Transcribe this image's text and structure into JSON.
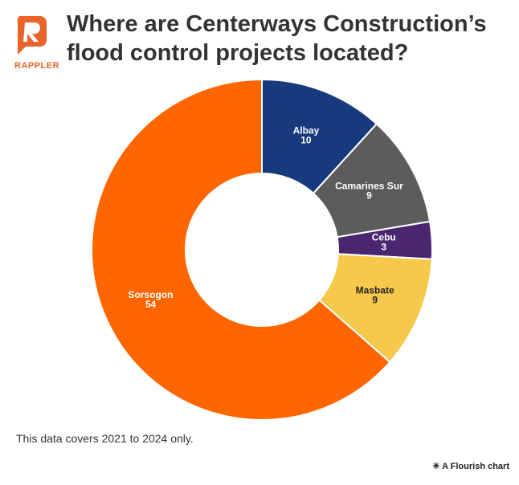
{
  "logo": "RAPPLER",
  "chart_data": {
    "type": "donut",
    "title": "Where are Centerways Construction’s flood control projects located?",
    "categories": [
      "Albay",
      "Camarines Sur",
      "Cebu",
      "Masbate",
      "Sorsogon"
    ],
    "values": [
      10,
      9,
      3,
      9,
      54
    ],
    "colors": [
      "#163a7d",
      "#5c5c5c",
      "#4a2670",
      "#f6c84c",
      "#ff6600"
    ],
    "label_colors": [
      "#ffffff",
      "#ffffff",
      "#ffffff",
      "#222222",
      "#ffffff"
    ],
    "footnote": "This data covers 2021 to 2024 only.",
    "credit": "A Flourish chart"
  }
}
